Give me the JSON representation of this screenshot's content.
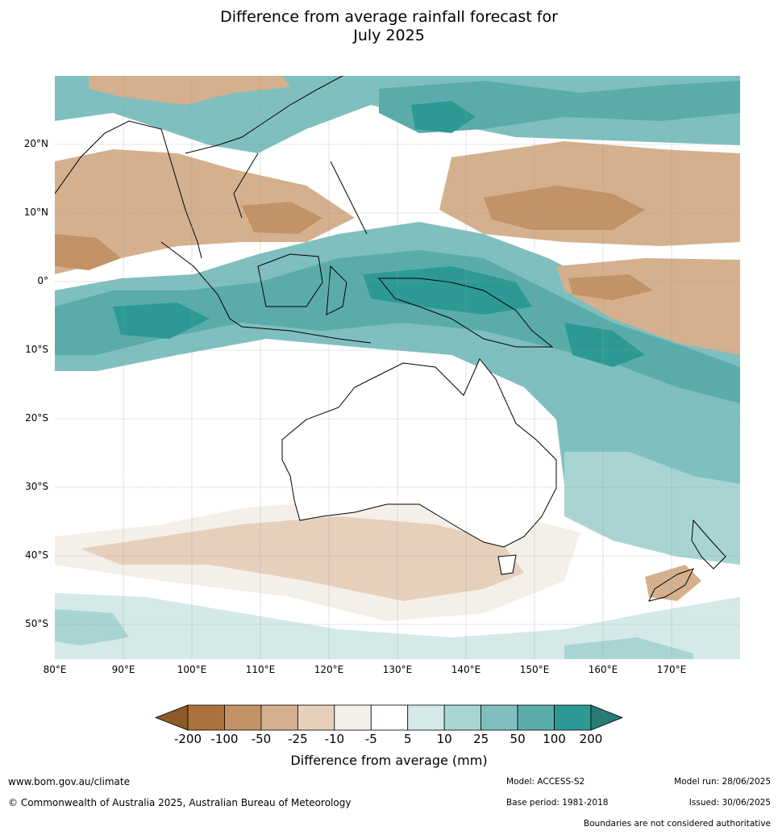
{
  "title_line1": "Difference from average rainfall forecast for",
  "title_line2": "July 2025",
  "lat_ticks": [
    "20°N",
    "10°N",
    "0°",
    "10°S",
    "20°S",
    "30°S",
    "40°S",
    "50°S"
  ],
  "lon_ticks": [
    "80°E",
    "90°E",
    "100°E",
    "110°E",
    "120°E",
    "130°E",
    "140°E",
    "150°E",
    "160°E",
    "170°E"
  ],
  "colorbar": {
    "ticks": [
      "-200",
      "-100",
      "-50",
      "-25",
      "-10",
      "-5",
      "5",
      "10",
      "25",
      "50",
      "100",
      "200"
    ],
    "colors": [
      "#8c5a2b",
      "#ad723c",
      "#c19366",
      "#d4b08e",
      "#e6d0bc",
      "#f4efe9",
      "#ffffff",
      "#d4e9e8",
      "#a8d5d4",
      "#80bfbf",
      "#5aacab",
      "#2d9995",
      "#2a7a76"
    ],
    "label": "Difference from average (mm)"
  },
  "footer": {
    "url": "www.bom.gov.au/climate",
    "copyright": "© Commonwealth of Australia 2025, Australian Bureau of Meteorology",
    "model": "Model: ACCESS-S2",
    "base_period": "Base period: 1981-2018",
    "model_run": "Model run: 28/06/2025",
    "issued": "Issued: 30/06/2025",
    "disclaimer": "Boundaries are not considered authoritative"
  }
}
